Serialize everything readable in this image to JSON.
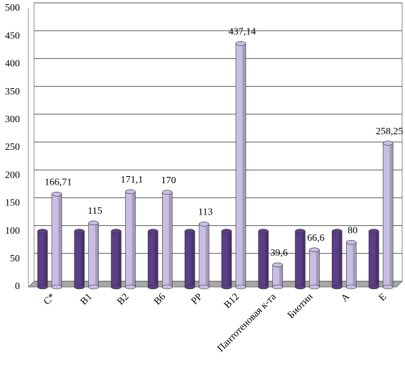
{
  "chart_data": {
    "type": "bar3d",
    "categories": [
      "С*",
      "В1",
      "В2",
      "В6",
      "РР",
      "В12",
      "Пантотеновая к-та",
      "Биотин",
      "А",
      "Е"
    ],
    "series": [
      {
        "color": "#5b3f86",
        "values": [
          100,
          100,
          100,
          100,
          100,
          100,
          100,
          100,
          100,
          100
        ]
      },
      {
        "color": "#c9bde3",
        "values": [
          166.71,
          115,
          171.1,
          170,
          113,
          437.14,
          39.6,
          66.6,
          80,
          258.25
        ],
        "value_labels": [
          "166,71",
          "115",
          "171,1",
          "170",
          "113",
          "437,14",
          "39,6",
          "66,6",
          "80",
          "258,25"
        ]
      }
    ],
    "ylim": [
      0,
      500
    ],
    "yticks": [
      0,
      50,
      100,
      150,
      200,
      250,
      300,
      350,
      400,
      450,
      500
    ],
    "grid": true
  }
}
